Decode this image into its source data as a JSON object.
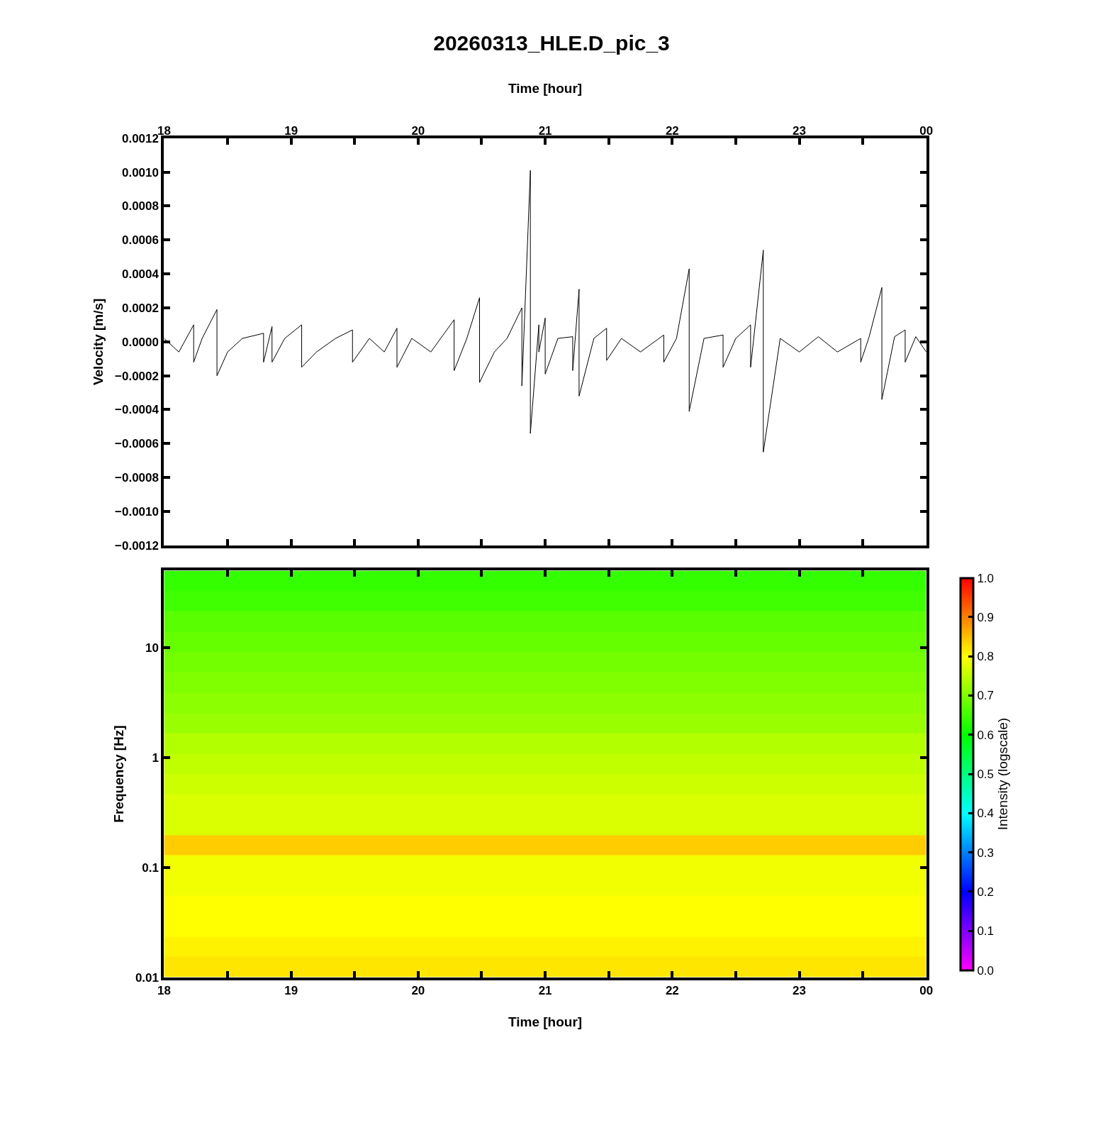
{
  "chart_data": [
    {
      "type": "line",
      "title": "20260313_HLE.D_pic_3",
      "x2label": "Time [hour]",
      "ylabel": "Velocity [m/s]",
      "x": [
        "2026-03-13T18:00",
        "2026-03-13T18:07",
        "2026-03-13T18:14",
        "2026-03-13T18:14",
        "2026-03-13T18:18",
        "2026-03-13T18:25",
        "2026-03-13T18:25",
        "2026-03-13T18:30",
        "2026-03-13T18:37",
        "2026-03-13T18:47",
        "2026-03-13T18:47",
        "2026-03-13T18:51",
        "2026-03-13T18:51",
        "2026-03-13T18:57",
        "2026-03-13T19:05",
        "2026-03-13T19:05",
        "2026-03-13T19:12",
        "2026-03-13T19:21",
        "2026-03-13T19:29",
        "2026-03-13T19:29",
        "2026-03-13T19:37",
        "2026-03-13T19:44",
        "2026-03-13T19:50",
        "2026-03-13T19:50",
        "2026-03-13T19:57",
        "2026-03-13T20:06",
        "2026-03-13T20:17",
        "2026-03-13T20:17",
        "2026-03-13T20:23",
        "2026-03-13T20:29",
        "2026-03-13T20:29",
        "2026-03-13T20:36",
        "2026-03-13T20:42",
        "2026-03-13T20:49",
        "2026-03-13T20:49",
        "2026-03-13T20:53",
        "2026-03-13T20:53",
        "2026-03-13T20:57",
        "2026-03-13T20:57",
        "2026-03-13T21:00",
        "2026-03-13T21:00",
        "2026-03-13T21:06",
        "2026-03-13T21:13",
        "2026-03-13T21:13",
        "2026-03-13T21:16",
        "2026-03-13T21:16",
        "2026-03-13T21:23",
        "2026-03-13T21:29",
        "2026-03-13T21:29",
        "2026-03-13T21:36",
        "2026-03-13T21:45",
        "2026-03-13T21:56",
        "2026-03-13T21:56",
        "2026-03-13T22:02",
        "2026-03-13T22:08",
        "2026-03-13T22:08",
        "2026-03-13T22:15",
        "2026-03-13T22:24",
        "2026-03-13T22:24",
        "2026-03-13T22:30",
        "2026-03-13T22:37",
        "2026-03-13T22:37",
        "2026-03-13T22:43",
        "2026-03-13T22:43",
        "2026-03-13T22:51",
        "2026-03-13T23:00",
        "2026-03-13T23:09",
        "2026-03-13T23:18",
        "2026-03-13T23:29",
        "2026-03-13T23:29",
        "2026-03-13T23:33",
        "2026-03-13T23:39",
        "2026-03-13T23:39",
        "2026-03-13T23:45",
        "2026-03-13T23:50",
        "2026-03-13T23:50",
        "2026-03-13T23:55",
        "2026-03-14T00:00"
      ],
      "series": [
        {
          "color": "#000000",
          "values": [
            2e-05,
            -6e-05,
            0.0001,
            -0.00012,
            2e-05,
            0.00019,
            -0.0002,
            -6e-05,
            2e-05,
            5e-05,
            -0.00012,
            9e-05,
            -0.00012,
            2e-05,
            0.0001,
            -0.00015,
            -6e-05,
            2e-05,
            7e-05,
            -0.00012,
            2e-05,
            -6e-05,
            8e-05,
            -0.00015,
            2e-05,
            -6e-05,
            0.00013,
            -0.00017,
            2e-05,
            0.00026,
            -0.00024,
            -6e-05,
            2e-05,
            0.0002,
            -0.00026,
            0.00101,
            -0.00054,
            0.0001,
            -6e-05,
            0.00014,
            -0.00019,
            2e-05,
            3e-05,
            -0.00017,
            0.00031,
            -0.00032,
            2e-05,
            8e-05,
            -0.00011,
            2e-05,
            -6e-05,
            4e-05,
            -0.00012,
            2e-05,
            0.00043,
            -0.00041,
            2e-05,
            4e-05,
            -0.00015,
            2e-05,
            0.0001,
            -0.00015,
            0.00054,
            -0.00065,
            2e-05,
            -6e-05,
            3e-05,
            -6e-05,
            2e-05,
            -0.00012,
            3e-05,
            0.00032,
            -0.00034,
            3e-05,
            7e-05,
            -0.00012,
            3e-05,
            -6e-05
          ]
        }
      ],
      "xlim": [
        "2026-03-13T18:00",
        "2026-03-14T00:00"
      ],
      "xticks": [
        {
          "value": "2026-03-13T18:00",
          "label": null
        },
        {
          "value": "2026-03-13T18:30",
          "label": null
        },
        {
          "value": "2026-03-13T19:00",
          "label": null
        },
        {
          "value": "2026-03-13T19:30",
          "label": null
        },
        {
          "value": "2026-03-13T20:00",
          "label": null
        },
        {
          "value": "2026-03-13T20:30",
          "label": null
        },
        {
          "value": "2026-03-13T21:00",
          "label": null
        },
        {
          "value": "2026-03-13T21:30",
          "label": null
        },
        {
          "value": "2026-03-13T22:00",
          "label": null
        },
        {
          "value": "2026-03-13T22:30",
          "label": null
        },
        {
          "value": "2026-03-13T23:00",
          "label": null
        },
        {
          "value": "2026-03-13T23:30",
          "label": null
        },
        {
          "value": "2026-03-14T00:00",
          "label": null
        }
      ],
      "x2lim": [
        "2026-03-13T18:00",
        "2026-03-14T00:00"
      ],
      "x2ticks": [
        {
          "value": "2026-03-13T18:00",
          "label": "18"
        },
        {
          "value": "2026-03-13T18:30",
          "label": null
        },
        {
          "value": "2026-03-13T19:00",
          "label": "19"
        },
        {
          "value": "2026-03-13T19:30",
          "label": null
        },
        {
          "value": "2026-03-13T20:00",
          "label": "20"
        },
        {
          "value": "2026-03-13T20:30",
          "label": null
        },
        {
          "value": "2026-03-13T21:00",
          "label": "21"
        },
        {
          "value": "2026-03-13T21:30",
          "label": null
        },
        {
          "value": "2026-03-13T22:00",
          "label": "22"
        },
        {
          "value": "2026-03-13T22:30",
          "label": null
        },
        {
          "value": "2026-03-13T23:00",
          "label": "23"
        },
        {
          "value": "2026-03-13T23:30",
          "label": null
        },
        {
          "value": "2026-03-14T00:00",
          "label": "00"
        }
      ],
      "ylim": [
        -0.0012,
        0.0012
      ],
      "yticks": [
        {
          "value": -0.0012,
          "label": "−0.0012"
        },
        {
          "value": -0.001,
          "label": "−0.0010"
        },
        {
          "value": -0.0008,
          "label": "−0.0008"
        },
        {
          "value": -0.0006,
          "label": "−0.0006"
        },
        {
          "value": -0.0004,
          "label": "−0.0004"
        },
        {
          "value": -0.0002,
          "label": "−0.0002"
        },
        {
          "value": 0,
          "label": "0.0000"
        },
        {
          "value": 0.0002,
          "label": "0.0002"
        },
        {
          "value": 0.0004,
          "label": "0.0004"
        },
        {
          "value": 0.0006,
          "label": "0.0006"
        },
        {
          "value": 0.0008,
          "label": "0.0008"
        },
        {
          "value": 0.001,
          "label": "0.0010"
        },
        {
          "value": 0.0012,
          "label": "0.0012"
        }
      ],
      "tick_labels": "y",
      "marker": "none",
      "line_style": "solid"
    },
    {
      "type": "heatmap",
      "xlabel": "Time [hour]",
      "ylabel": "Frequency [Hz]",
      "clabel": "Intensity (logscale)",
      "x": [
        "2026-03-13T18:30",
        "2026-03-13T19:30",
        "2026-03-13T20:30",
        "2026-03-13T21:30",
        "2026-03-13T22:30",
        "2026-03-13T23:30"
      ],
      "cells": [
        [
          0.64,
          0.64,
          0.64,
          0.64,
          0.64,
          0.64
        ],
        [
          0.65,
          0.65,
          0.65,
          0.65,
          0.65,
          0.65
        ],
        [
          0.67,
          0.67,
          0.67,
          0.67,
          0.67,
          0.67
        ],
        [
          0.68,
          0.68,
          0.68,
          0.68,
          0.68,
          0.68
        ],
        [
          0.69,
          0.69,
          0.69,
          0.69,
          0.69,
          0.69
        ],
        [
          0.7,
          0.7,
          0.7,
          0.7,
          0.7,
          0.7
        ],
        [
          0.71,
          0.71,
          0.71,
          0.71,
          0.71,
          0.71
        ],
        [
          0.72,
          0.72,
          0.72,
          0.72,
          0.72,
          0.72
        ],
        [
          0.74,
          0.74,
          0.74,
          0.74,
          0.74,
          0.74
        ],
        [
          0.75,
          0.75,
          0.75,
          0.75,
          0.75,
          0.75
        ],
        [
          0.76,
          0.76,
          0.76,
          0.76,
          0.76,
          0.76
        ],
        [
          0.77,
          0.77,
          0.77,
          0.77,
          0.77,
          0.77
        ],
        [
          0.77,
          0.77,
          0.77,
          0.77,
          0.77,
          0.77
        ],
        [
          0.84,
          0.84,
          0.84,
          0.84,
          0.84,
          0.84
        ],
        [
          0.79,
          0.79,
          0.79,
          0.79,
          0.79,
          0.79
        ],
        [
          0.79,
          0.79,
          0.79,
          0.79,
          0.79,
          0.79
        ],
        [
          0.8,
          0.8,
          0.8,
          0.8,
          0.8,
          0.8
        ],
        [
          0.8,
          0.8,
          0.8,
          0.8,
          0.8,
          0.8
        ],
        [
          0.81,
          0.81,
          0.81,
          0.81,
          0.81,
          0.81
        ],
        [
          0.82,
          0.82,
          0.82,
          0.82,
          0.82,
          0.82
        ]
      ],
      "xlim": [
        "2026-03-13T18:00",
        "2026-03-14T00:00"
      ],
      "xticks": [
        {
          "value": "2026-03-13T18:00",
          "label": "18"
        },
        {
          "value": "2026-03-13T18:30",
          "label": null
        },
        {
          "value": "2026-03-13T19:00",
          "label": "19"
        },
        {
          "value": "2026-03-13T19:30",
          "label": null
        },
        {
          "value": "2026-03-13T20:00",
          "label": "20"
        },
        {
          "value": "2026-03-13T20:30",
          "label": null
        },
        {
          "value": "2026-03-13T21:00",
          "label": "21"
        },
        {
          "value": "2026-03-13T21:30",
          "label": null
        },
        {
          "value": "2026-03-13T22:00",
          "label": "22"
        },
        {
          "value": "2026-03-13T22:30",
          "label": null
        },
        {
          "value": "2026-03-13T23:00",
          "label": "23"
        },
        {
          "value": "2026-03-13T23:30",
          "label": null
        },
        {
          "value": "2026-03-14T00:00",
          "label": "00"
        }
      ],
      "ylim": [
        0.01,
        50
      ],
      "yticks": [
        0.01,
        0.1,
        1,
        10
      ],
      "log": "y",
      "clim": [
        0,
        1
      ],
      "cticks": [
        {
          "value": 0,
          "label": "0.0"
        },
        0.1,
        0.2,
        0.3,
        0.4,
        0.5,
        0.6,
        0.7,
        0.8,
        0.9,
        {
          "value": 1,
          "label": "1.0"
        }
      ]
    }
  ]
}
